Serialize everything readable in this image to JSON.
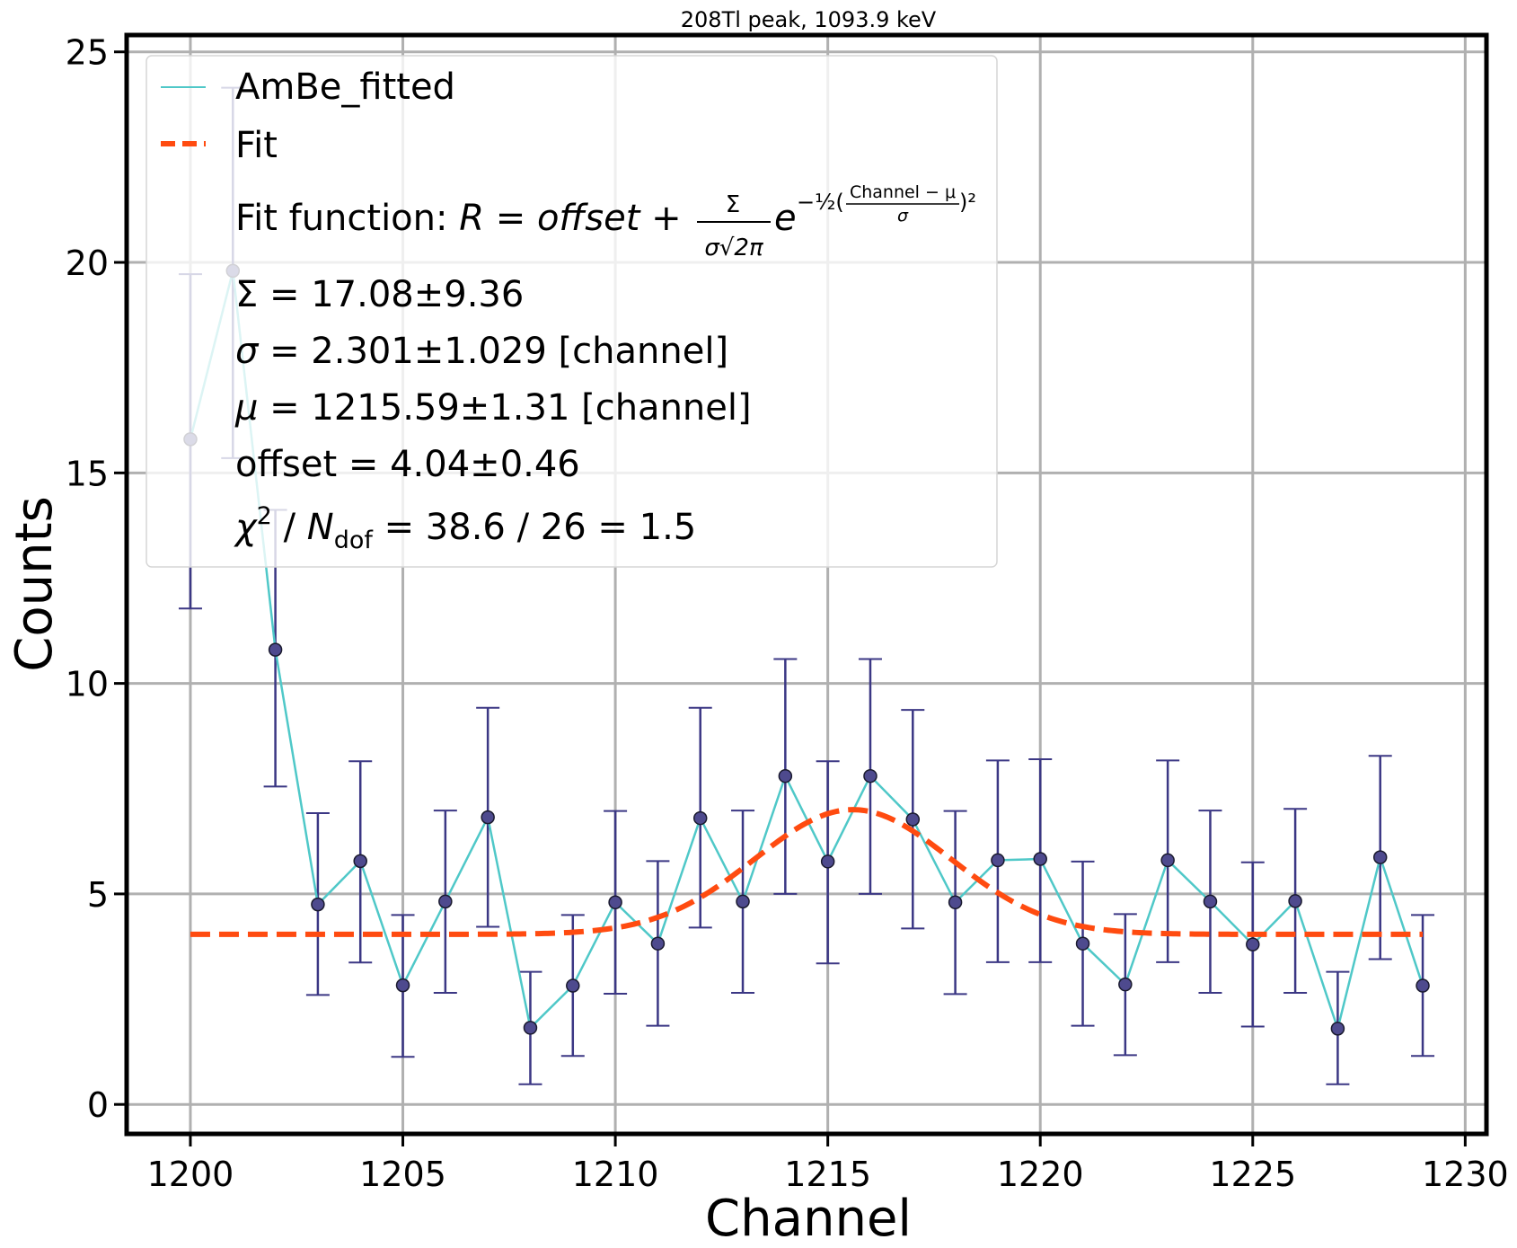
{
  "chart_data": {
    "type": "line",
    "title": "208Tl peak, 1093.9 keV",
    "xlabel": "Channel",
    "ylabel": "Counts",
    "xlim": [
      1198.5,
      1230.5
    ],
    "ylim": [
      -0.7,
      25.4
    ],
    "xticks": [
      1200,
      1205,
      1210,
      1215,
      1220,
      1225,
      1230
    ],
    "yticks": [
      0,
      5,
      10,
      15,
      20,
      25
    ],
    "grid": true,
    "legend_position": "top-left",
    "colors": {
      "data_line": "#4fc8c8",
      "marker_fill": "#4e4a8e",
      "errorbar": "#3b3784",
      "fit": "#ff4b10",
      "grid": "#b0b0b0"
    },
    "series": [
      {
        "name": "AmBe_fitted",
        "x": [
          1200,
          1201,
          1202,
          1203,
          1204,
          1205,
          1206,
          1207,
          1208,
          1209,
          1210,
          1211,
          1212,
          1213,
          1214,
          1215,
          1216,
          1217,
          1218,
          1219,
          1220,
          1221,
          1222,
          1223,
          1224,
          1225,
          1226,
          1227,
          1228,
          1229
        ],
        "y": [
          15.8,
          19.8,
          10.8,
          4.75,
          5.78,
          2.83,
          4.82,
          6.82,
          1.82,
          2.82,
          4.8,
          3.82,
          6.8,
          4.82,
          7.8,
          5.77,
          7.8,
          6.77,
          4.8,
          5.8,
          5.83,
          3.82,
          2.85,
          5.8,
          4.82,
          3.8,
          4.83,
          1.8,
          5.87,
          2.82
        ],
        "yerr_low": [
          11.78,
          15.35,
          7.55,
          2.6,
          3.37,
          1.13,
          2.65,
          4.22,
          0.48,
          1.15,
          2.63,
          1.87,
          4.2,
          2.65,
          5.0,
          3.35,
          5.0,
          4.18,
          2.62,
          3.38,
          3.38,
          1.87,
          1.17,
          3.38,
          2.65,
          1.85,
          2.65,
          0.48,
          3.45,
          1.15
        ],
        "yerr_high": [
          19.72,
          24.15,
          14.12,
          6.92,
          8.15,
          4.5,
          6.98,
          9.42,
          3.15,
          4.5,
          6.97,
          5.78,
          9.42,
          6.98,
          10.58,
          8.15,
          10.58,
          9.37,
          6.97,
          8.17,
          8.2,
          5.77,
          4.52,
          8.17,
          6.98,
          5.75,
          7.02,
          3.15,
          8.28,
          4.5
        ]
      },
      {
        "name": "Fit",
        "function": "gaussian_plus_offset",
        "params": {
          "Sigma": 17.08,
          "sigma": 2.301,
          "mu": 1215.59,
          "offset": 4.04
        },
        "x_range": [
          1200,
          1229
        ]
      }
    ],
    "legend": {
      "line_label": "AmBe_fitted",
      "fit_label": "Fit",
      "fit_function_prefix": "Fit function: ",
      "fit_formula_lhs": "R = offset + ",
      "fit_formula_num": "Σ",
      "fit_formula_den": "σ√2π",
      "fit_formula_e": "e",
      "fit_formula_exp": "−½(",
      "fit_formula_exp_num": "Channel − μ",
      "fit_formula_exp_den": "σ",
      "fit_formula_exp_close": ")²",
      "param_Sigma": "Σ = 17.08±9.36",
      "param_sigma_sym": "σ",
      "param_sigma": " = 2.301±1.029 [channel]",
      "param_mu_sym": "μ",
      "param_mu": " = 1215.59±1.31 [channel]",
      "param_offset": "offset = 4.04±0.46",
      "chi2_sym": "χ",
      "chi2_sup": "2",
      "chi2_mid": " / ",
      "chi2_N": "N",
      "chi2_sub": "dof",
      "chi2_value": " = 38.6 / 26 = 1.5"
    }
  }
}
